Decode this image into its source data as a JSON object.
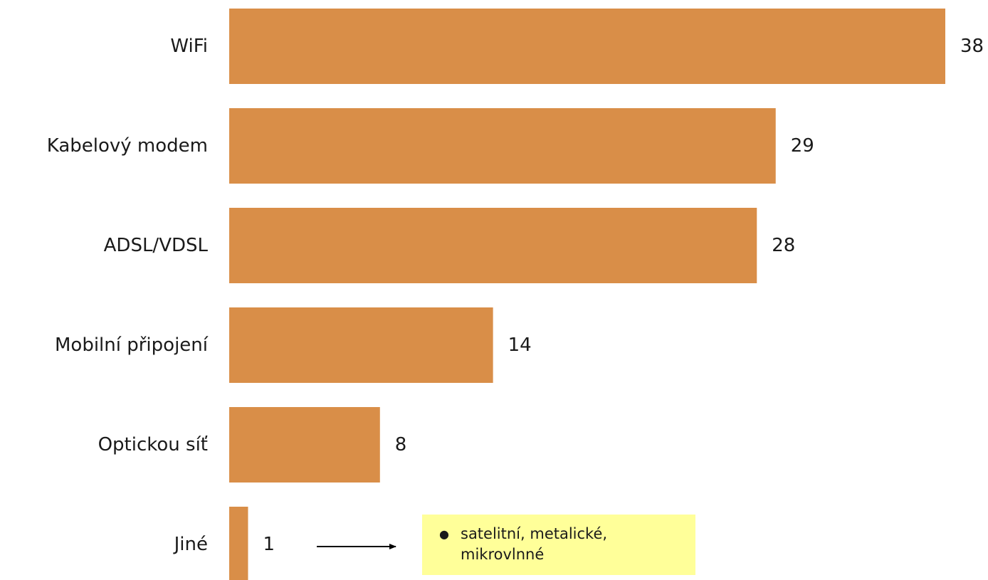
{
  "chart_data": {
    "type": "bar",
    "orientation": "horizontal",
    "categories": [
      "WiFi",
      "Kabelový modem",
      "ADSL/VDSL",
      "Mobilní připojení",
      "Optickou síť",
      "Jiné"
    ],
    "values": [
      38,
      29,
      28,
      14,
      8,
      1
    ],
    "data_labels": [
      "38",
      "29",
      "28",
      "14",
      "8",
      "1"
    ],
    "xlim": [
      0,
      38
    ],
    "grid": false,
    "legend": "none",
    "bar_color": "#D98E48"
  },
  "annotation": {
    "target_category": "Jiné",
    "items": [
      "satelitní, metalické, mikrovlnné"
    ],
    "background": "#FFFF99"
  }
}
